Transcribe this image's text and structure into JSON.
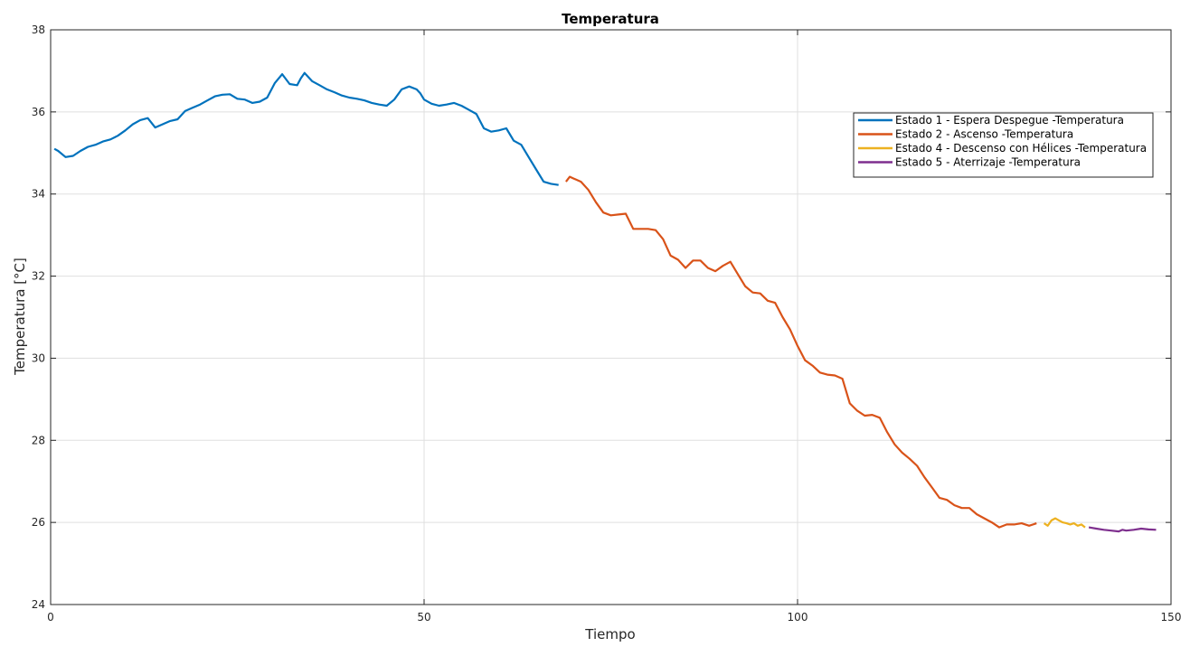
{
  "chart_data": {
    "type": "line",
    "title": "Temperatura",
    "xlabel": "Tiempo",
    "ylabel": "Temperatura [°C]",
    "xlim": [
      0,
      150
    ],
    "ylim": [
      24,
      38
    ],
    "xticks": [
      0,
      50,
      100,
      150
    ],
    "yticks": [
      24,
      26,
      28,
      30,
      32,
      34,
      36,
      38
    ],
    "grid": true,
    "legend_position": "top-right",
    "series": [
      {
        "name": "Estado 1 - Espera Despegue -Temperatura",
        "color": "#0072BD",
        "x": [
          0.5,
          1,
          2,
          3,
          4,
          5,
          6,
          7,
          8,
          9,
          10,
          11,
          12,
          13,
          14,
          15,
          16,
          17,
          18,
          19,
          20,
          21,
          22,
          23,
          24,
          25,
          26,
          27,
          28,
          29,
          30,
          31,
          32,
          33,
          33.5,
          34,
          35,
          36,
          37,
          38,
          39,
          40,
          41,
          42,
          43,
          44,
          45,
          46,
          47,
          48,
          49,
          49.5,
          50,
          51,
          52,
          53,
          54,
          55,
          56,
          57,
          58,
          59,
          60,
          61,
          62,
          63,
          64,
          65,
          66,
          67,
          68
        ],
        "y": [
          35.1,
          35.05,
          34.9,
          34.93,
          35.05,
          35.15,
          35.2,
          35.28,
          35.33,
          35.42,
          35.55,
          35.7,
          35.8,
          35.85,
          35.62,
          35.7,
          35.78,
          35.82,
          36.02,
          36.1,
          36.18,
          36.28,
          36.38,
          36.42,
          36.43,
          36.32,
          36.3,
          36.22,
          36.25,
          36.35,
          36.7,
          36.92,
          36.68,
          36.65,
          36.82,
          36.95,
          36.75,
          36.65,
          36.55,
          36.48,
          36.4,
          36.35,
          36.32,
          36.28,
          36.22,
          36.18,
          36.15,
          36.3,
          36.55,
          36.62,
          36.55,
          36.45,
          36.3,
          36.2,
          36.15,
          36.18,
          36.22,
          36.15,
          36.05,
          35.95,
          35.6,
          35.52,
          35.55,
          35.6,
          35.3,
          35.2,
          34.9,
          34.6,
          34.3,
          34.25,
          34.22
        ]
      },
      {
        "name": "Estado 2 - Ascenso -Temperatura",
        "color": "#D95319",
        "x": [
          69,
          69.5,
          70,
          71,
          72,
          73,
          74,
          75,
          76,
          77,
          78,
          79,
          80,
          81,
          82,
          83,
          84,
          85,
          86,
          87,
          88,
          89,
          90,
          91,
          92,
          93,
          94,
          95,
          96,
          97,
          98,
          99,
          100,
          101,
          102,
          103,
          104,
          105,
          106,
          107,
          108,
          109,
          110,
          111,
          112,
          113,
          114,
          115,
          116,
          117,
          118,
          119,
          120,
          121,
          122,
          123,
          124,
          125,
          126,
          127,
          128,
          129,
          130,
          131,
          132
        ],
        "y": [
          34.3,
          34.42,
          34.38,
          34.3,
          34.1,
          33.8,
          33.55,
          33.48,
          33.5,
          33.52,
          33.15,
          33.15,
          33.15,
          33.12,
          32.9,
          32.5,
          32.4,
          32.2,
          32.38,
          32.38,
          32.2,
          32.12,
          32.25,
          32.35,
          32.05,
          31.75,
          31.6,
          31.58,
          31.4,
          31.35,
          31.0,
          30.7,
          30.3,
          29.95,
          29.82,
          29.65,
          29.6,
          29.58,
          29.5,
          28.9,
          28.72,
          28.6,
          28.62,
          28.55,
          28.2,
          27.9,
          27.7,
          27.55,
          27.38,
          27.1,
          26.85,
          26.6,
          26.55,
          26.42,
          26.35,
          26.35,
          26.2,
          26.1,
          26.0,
          25.88,
          25.95,
          25.95,
          25.98,
          25.92,
          25.98
        ]
      },
      {
        "name": "Estado 4 - Descenso con Hélices -Temperatura",
        "color": "#EDB120",
        "x": [
          133,
          133.5,
          134,
          134.5,
          135,
          135.5,
          136,
          136.5,
          137,
          137.5,
          138,
          138.5
        ],
        "y": [
          25.98,
          25.92,
          26.05,
          26.1,
          26.05,
          26.0,
          25.98,
          25.95,
          25.98,
          25.92,
          25.95,
          25.88
        ]
      },
      {
        "name": "Estado 5 - Aterrizaje -Temperatura",
        "color": "#7E2F8E",
        "x": [
          139,
          140,
          141,
          142,
          143,
          143.5,
          144,
          145,
          146,
          147,
          148
        ],
        "y": [
          25.88,
          25.85,
          25.82,
          25.8,
          25.78,
          25.82,
          25.8,
          25.82,
          25.85,
          25.83,
          25.82
        ]
      }
    ]
  }
}
